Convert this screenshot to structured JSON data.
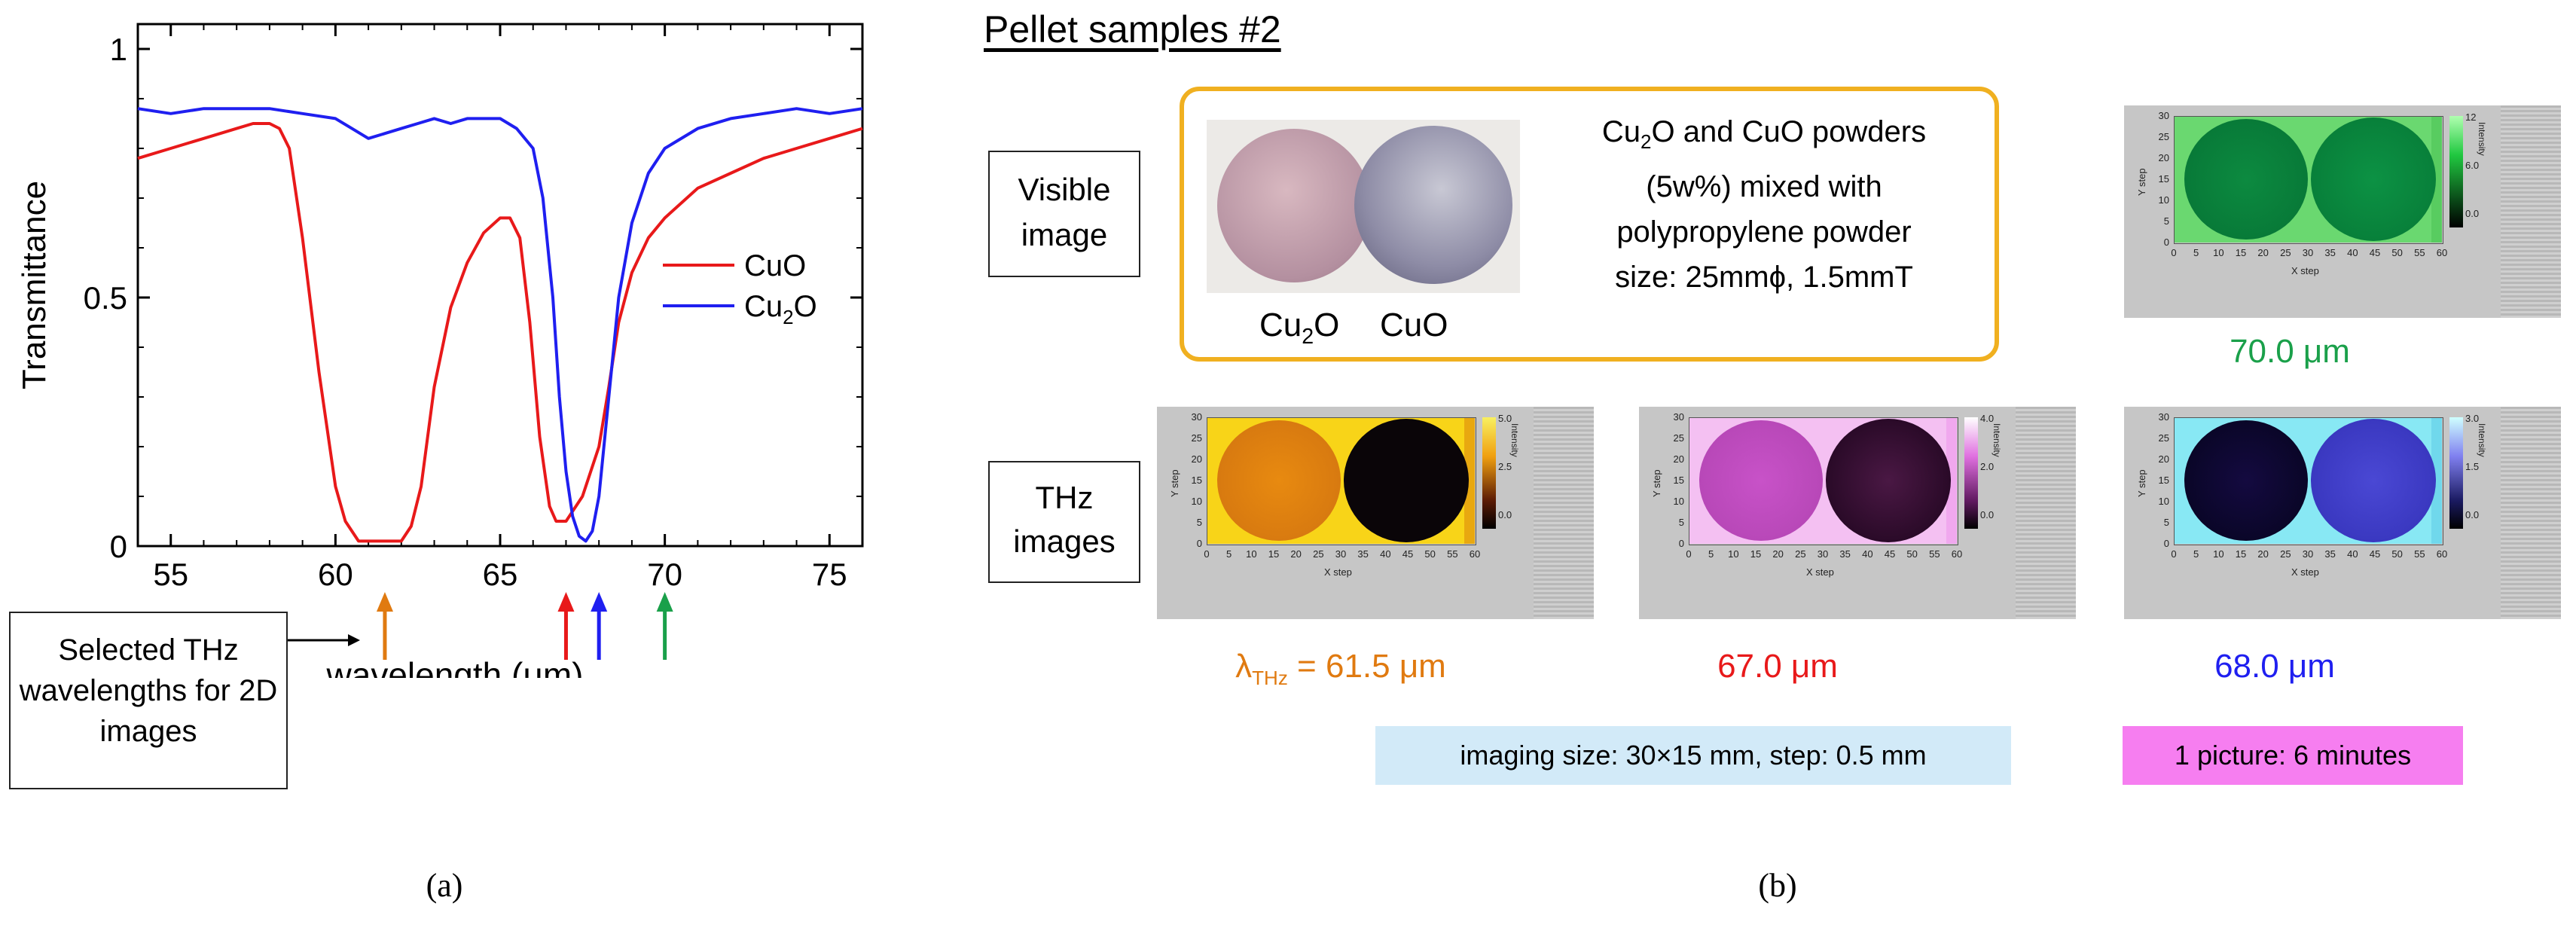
{
  "panel_a": {
    "label": "(a)",
    "callout": "Selected THz wavelengths for 2D images",
    "chart_data": {
      "type": "line",
      "xlabel": "wavelength (μm)",
      "ylabel": "Transmittance",
      "xlim": [
        54,
        76
      ],
      "ylim": [
        0,
        1.05
      ],
      "x_ticks": [
        55,
        60,
        65,
        70,
        75
      ],
      "y_ticks": [
        0,
        0.5,
        1
      ],
      "y_tick_labels": [
        "0",
        "0.5",
        "1"
      ],
      "legend": [
        {
          "name": "CuO",
          "color": "#e8191a"
        },
        {
          "name": "Cu2O",
          "color": "#1f1ff0"
        }
      ],
      "series": [
        {
          "name": "CuO",
          "color": "#e8191a",
          "x": [
            54,
            55,
            56,
            57,
            57.5,
            58,
            58.3,
            58.6,
            59,
            59.5,
            60,
            60.3,
            60.7,
            61,
            61.5,
            62,
            62.3,
            62.6,
            63,
            63.5,
            64,
            64.5,
            65,
            65.3,
            65.6,
            65.9,
            66.2,
            66.5,
            66.7,
            66.9,
            67,
            67.2,
            67.5,
            68,
            68.3,
            68.6,
            69,
            69.5,
            70,
            71,
            72,
            73,
            74,
            75,
            76
          ],
          "y": [
            0.78,
            0.8,
            0.82,
            0.84,
            0.85,
            0.85,
            0.84,
            0.8,
            0.62,
            0.35,
            0.12,
            0.05,
            0.01,
            0.01,
            0.01,
            0.01,
            0.04,
            0.12,
            0.32,
            0.48,
            0.57,
            0.63,
            0.66,
            0.66,
            0.62,
            0.45,
            0.22,
            0.08,
            0.05,
            0.05,
            0.05,
            0.07,
            0.1,
            0.2,
            0.32,
            0.45,
            0.55,
            0.62,
            0.66,
            0.72,
            0.75,
            0.78,
            0.8,
            0.82,
            0.84
          ]
        },
        {
          "name": "Cu2O",
          "color": "#1f1ff0",
          "x": [
            54,
            55,
            56,
            57,
            58,
            59,
            60,
            60.5,
            61,
            61.5,
            62,
            62.5,
            63,
            63.5,
            64,
            65,
            65.5,
            66,
            66.3,
            66.6,
            66.8,
            67,
            67.2,
            67.4,
            67.6,
            67.8,
            68,
            68.3,
            68.6,
            69,
            69.5,
            70,
            71,
            72,
            73,
            74,
            75,
            76
          ],
          "y": [
            0.88,
            0.87,
            0.88,
            0.88,
            0.88,
            0.87,
            0.86,
            0.84,
            0.82,
            0.83,
            0.84,
            0.85,
            0.86,
            0.85,
            0.86,
            0.86,
            0.84,
            0.8,
            0.7,
            0.5,
            0.3,
            0.15,
            0.06,
            0.02,
            0.01,
            0.03,
            0.1,
            0.3,
            0.5,
            0.65,
            0.75,
            0.8,
            0.84,
            0.86,
            0.87,
            0.88,
            0.87,
            0.88
          ]
        }
      ],
      "markers": [
        {
          "x": 61.5,
          "color": "#e07a10"
        },
        {
          "x": 67.0,
          "color": "#e8191a"
        },
        {
          "x": 68.0,
          "color": "#1f1ff0"
        },
        {
          "x": 70.0,
          "color": "#1aa04a"
        }
      ]
    }
  },
  "panel_b": {
    "label": "(b)",
    "title": "Pellet samples #2",
    "visible_label": "Visible image",
    "thz_label": "THz images",
    "photo_labels": {
      "left": "Cu2O",
      "right": "CuO"
    },
    "sample_text": {
      "line1": "Cu2O and CuO powders",
      "line2": "(5w%) mixed with",
      "line3": "polypropylene powder",
      "line4": "size: 25mmϕ, 1.5mmT"
    },
    "images": [
      {
        "caption_prefix": "λ",
        "caption_sub": "THz",
        "caption": " = 61.5 μm",
        "caption_color": "#e07a10",
        "cbar_ticks": [
          "5.0",
          "2.5",
          "0.0"
        ]
      },
      {
        "caption": "67.0 μm",
        "caption_color": "#e8191a",
        "cbar_ticks": [
          "4.0",
          "2.0",
          "0.0"
        ]
      },
      {
        "caption": "68.0 μm",
        "caption_color": "#1f1ff0",
        "cbar_ticks": [
          "3.0",
          "1.5",
          "0.0"
        ]
      },
      {
        "caption": "70.0 μm",
        "caption_color": "#1aa04a",
        "cbar_ticks": [
          "12",
          "6.0",
          "0.0"
        ]
      }
    ],
    "imaging_note": "imaging size: 30×15 mm, step: 0.5 mm",
    "time_note": "1 picture: 6 minutes",
    "axis_labels": {
      "x": "X step",
      "y": "Y step",
      "c": "Intensity"
    },
    "x_ticks": [
      "0",
      "5",
      "10",
      "15",
      "20",
      "25",
      "30",
      "35",
      "40",
      "45",
      "50",
      "55",
      "60"
    ],
    "y_ticks": [
      "30",
      "25",
      "20",
      "15",
      "10",
      "5",
      "0"
    ]
  }
}
